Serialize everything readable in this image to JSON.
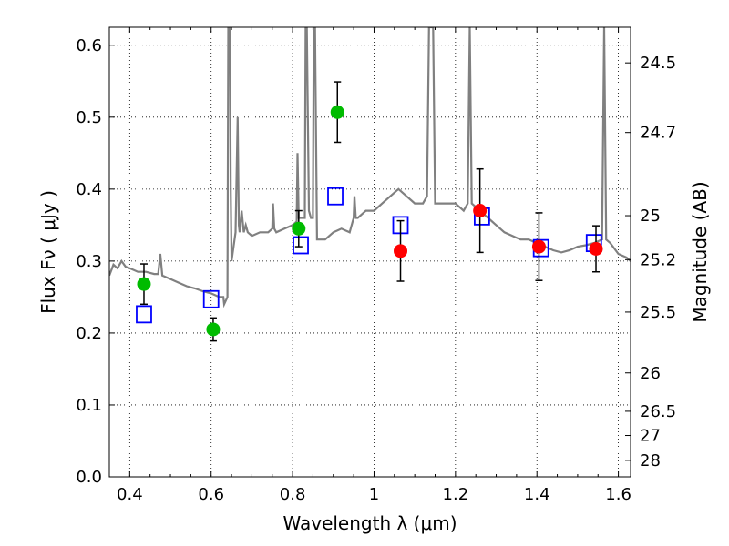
{
  "chart_data": {
    "type": "scatter",
    "title": "",
    "xlabel": "Wavelength  λ (μm)",
    "ylabel": "Flux  Fν  ( μJy )",
    "ylabel_right": "Magnitude (AB)",
    "xlim": [
      0.35,
      1.63
    ],
    "ylim": [
      0.0,
      0.625
    ],
    "grid": true,
    "x_ticks": [
      "0.4",
      "0.6",
      "0.8",
      "1",
      "1.2",
      "1.4",
      "1.6"
    ],
    "x_tick_values": [
      0.4,
      0.6,
      0.8,
      1.0,
      1.2,
      1.4,
      1.6
    ],
    "y_ticks": [
      "0.0",
      "0.1",
      "0.2",
      "0.3",
      "0.4",
      "0.5",
      "0.6"
    ],
    "y_tick_values": [
      0.0,
      0.1,
      0.2,
      0.3,
      0.4,
      0.5,
      0.6
    ],
    "right_ticks": [
      "24.5",
      "24.7",
      "25",
      "25.2",
      "25.5",
      "26",
      "26.5",
      "27",
      "28"
    ],
    "right_tick_values": [
      24.5,
      24.7,
      25.0,
      25.2,
      25.5,
      26.0,
      26.5,
      27.0,
      28.0
    ],
    "series": [
      {
        "kind": "line",
        "color": "#808080",
        "x": [
          0.35,
          0.36,
          0.37,
          0.38,
          0.39,
          0.4,
          0.42,
          0.44,
          0.46,
          0.47,
          0.475,
          0.48,
          0.5,
          0.52,
          0.54,
          0.56,
          0.58,
          0.6,
          0.62,
          0.63,
          0.632,
          0.64,
          0.642,
          0.644,
          0.646,
          0.648,
          0.65,
          0.655,
          0.66,
          0.665,
          0.668,
          0.67,
          0.675,
          0.68,
          0.685,
          0.69,
          0.7,
          0.72,
          0.74,
          0.75,
          0.752,
          0.755,
          0.76,
          0.78,
          0.8,
          0.81,
          0.812,
          0.815,
          0.82,
          0.83,
          0.832,
          0.835,
          0.84,
          0.845,
          0.85,
          0.852,
          0.855,
          0.86,
          0.88,
          0.9,
          0.92,
          0.94,
          0.95,
          0.952,
          0.955,
          0.96,
          0.98,
          1.0,
          1.02,
          1.04,
          1.06,
          1.08,
          1.1,
          1.12,
          1.13,
          1.135,
          1.14,
          1.145,
          1.15,
          1.16,
          1.18,
          1.2,
          1.22,
          1.23,
          1.235,
          1.24,
          1.26,
          1.28,
          1.3,
          1.32,
          1.34,
          1.36,
          1.38,
          1.4,
          1.42,
          1.44,
          1.46,
          1.48,
          1.5,
          1.52,
          1.54,
          1.56,
          1.565,
          1.57,
          1.58,
          1.6,
          1.62,
          1.63
        ],
        "y": [
          0.28,
          0.295,
          0.29,
          0.3,
          0.292,
          0.29,
          0.285,
          0.285,
          0.282,
          0.282,
          0.31,
          0.28,
          0.275,
          0.27,
          0.265,
          0.262,
          0.258,
          0.255,
          0.25,
          0.25,
          0.24,
          0.25,
          0.625,
          0.625,
          0.625,
          0.4,
          0.3,
          0.32,
          0.34,
          0.5,
          0.35,
          0.34,
          0.37,
          0.34,
          0.35,
          0.34,
          0.335,
          0.34,
          0.34,
          0.345,
          0.38,
          0.345,
          0.34,
          0.345,
          0.35,
          0.355,
          0.45,
          0.36,
          0.36,
          0.36,
          0.625,
          0.625,
          0.37,
          0.36,
          0.36,
          0.625,
          0.625,
          0.33,
          0.33,
          0.34,
          0.345,
          0.34,
          0.36,
          0.39,
          0.36,
          0.36,
          0.37,
          0.37,
          0.38,
          0.39,
          0.4,
          0.39,
          0.38,
          0.38,
          0.39,
          0.625,
          0.625,
          0.625,
          0.38,
          0.38,
          0.38,
          0.38,
          0.37,
          0.38,
          0.625,
          0.38,
          0.37,
          0.36,
          0.35,
          0.34,
          0.335,
          0.33,
          0.33,
          0.325,
          0.32,
          0.315,
          0.312,
          0.315,
          0.32,
          0.322,
          0.325,
          0.33,
          0.625,
          0.33,
          0.325,
          0.31,
          0.305,
          0.3
        ]
      },
      {
        "kind": "markers",
        "marker": "square",
        "color": "#0000ff",
        "x": [
          0.435,
          0.6,
          0.82,
          0.905,
          1.065,
          1.265,
          1.41,
          1.54
        ],
        "y": [
          0.226,
          0.247,
          0.322,
          0.39,
          0.35,
          0.362,
          0.318,
          0.325
        ]
      },
      {
        "kind": "markers",
        "marker": "circle",
        "color": "#00bb00",
        "x": [
          0.435,
          0.605,
          0.815,
          0.91
        ],
        "y": [
          0.268,
          0.205,
          0.345,
          0.507
        ],
        "err": [
          0.028,
          0.016,
          0.025,
          0.042
        ]
      },
      {
        "kind": "markers",
        "marker": "circle",
        "color": "#ff0000",
        "x": [
          1.065,
          1.26,
          1.405,
          1.545
        ],
        "y": [
          0.314,
          0.37,
          0.32,
          0.317
        ],
        "err": [
          0.042,
          0.058,
          0.047,
          0.032
        ]
      }
    ]
  }
}
